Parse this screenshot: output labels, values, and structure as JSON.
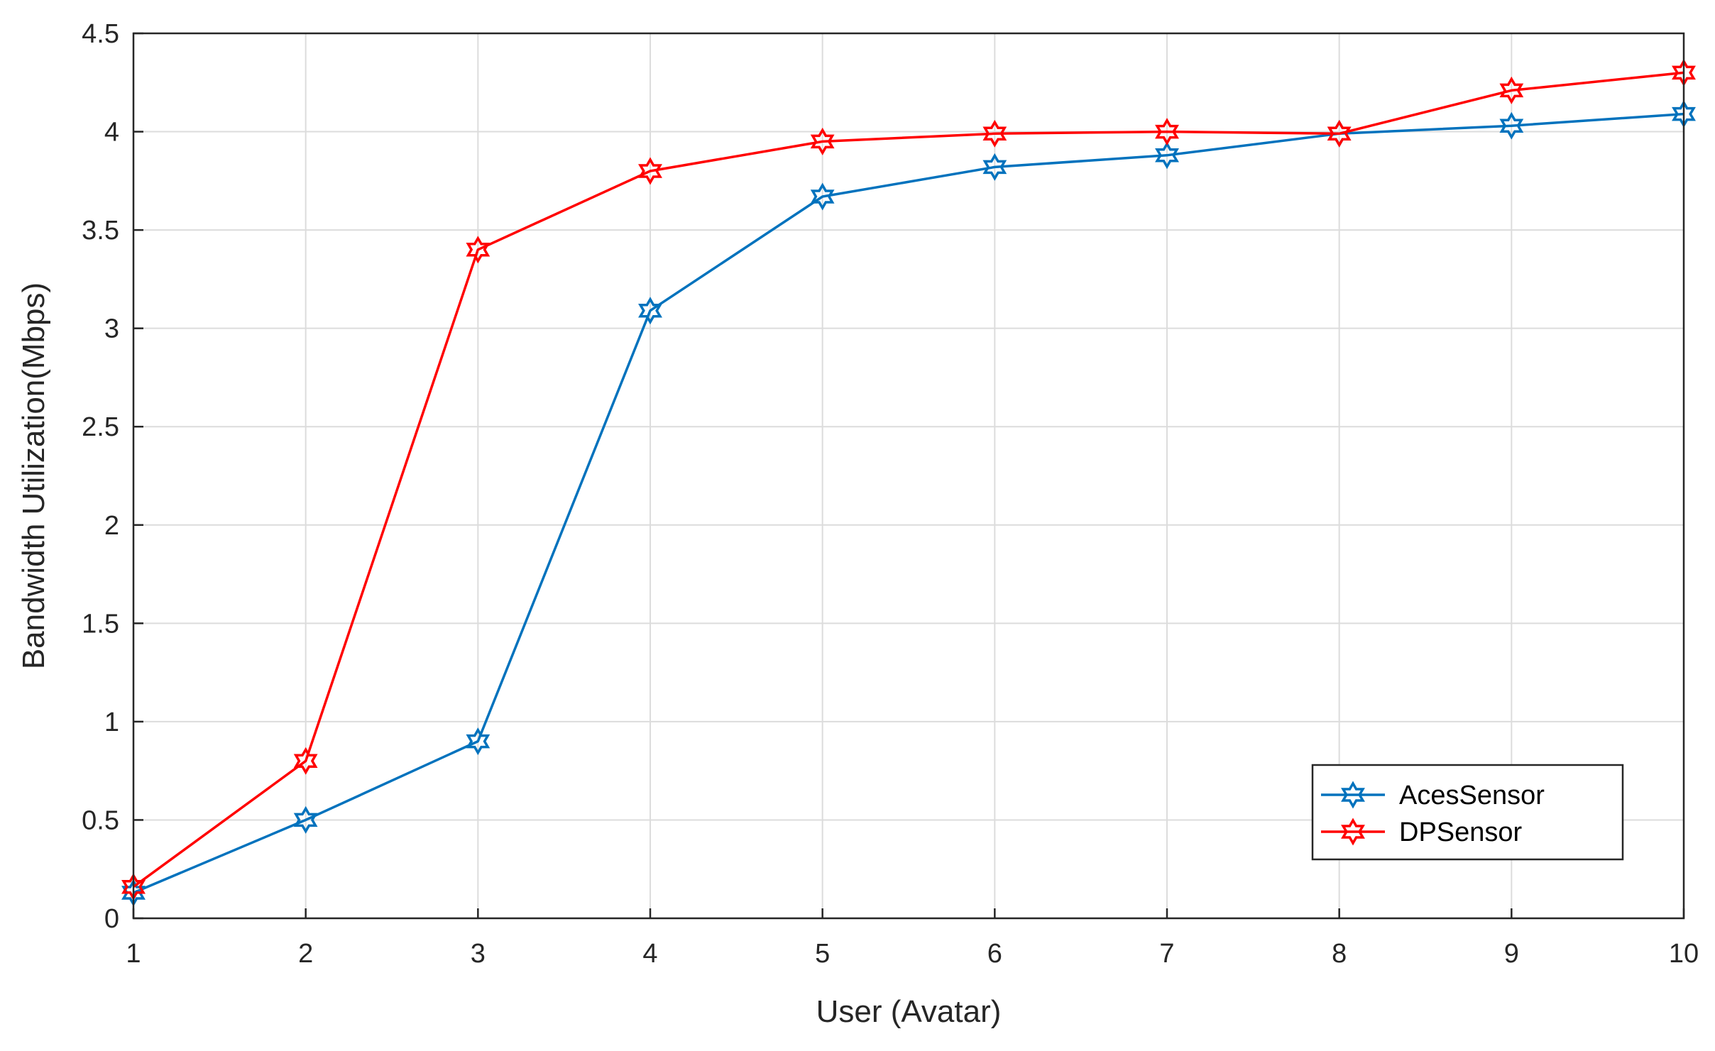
{
  "chart_data": {
    "type": "line",
    "title": "",
    "xlabel": "User (Avatar)",
    "ylabel": "Bandwidth Utilization(Mbps)",
    "x": [
      1,
      2,
      3,
      4,
      5,
      6,
      7,
      8,
      9,
      10
    ],
    "xlim": [
      1,
      10
    ],
    "ylim": [
      0,
      4.5
    ],
    "xticks": [
      1,
      2,
      3,
      4,
      5,
      6,
      7,
      8,
      9,
      10
    ],
    "yticks": [
      0,
      0.5,
      1,
      1.5,
      2,
      2.5,
      3,
      3.5,
      4,
      4.5
    ],
    "xtick_labels": [
      "1",
      "2",
      "3",
      "4",
      "5",
      "6",
      "7",
      "8",
      "9",
      "10"
    ],
    "ytick_labels": [
      "0",
      "0.5",
      "1",
      "1.5",
      "2",
      "2.5",
      "3",
      "3.5",
      "4",
      "4.5"
    ],
    "grid": true,
    "legend_position": "bottom-right",
    "series": [
      {
        "name": "AcesSensor",
        "color": "#0072BD",
        "marker": "hexagram",
        "values": [
          0.13,
          0.5,
          0.9,
          3.09,
          3.67,
          3.82,
          3.88,
          3.99,
          4.03,
          4.09
        ]
      },
      {
        "name": "DPSensor",
        "color": "#FF0000",
        "marker": "hexagram",
        "values": [
          0.16,
          0.8,
          3.4,
          3.8,
          3.95,
          3.99,
          4.0,
          3.99,
          4.21,
          4.3
        ]
      }
    ]
  }
}
